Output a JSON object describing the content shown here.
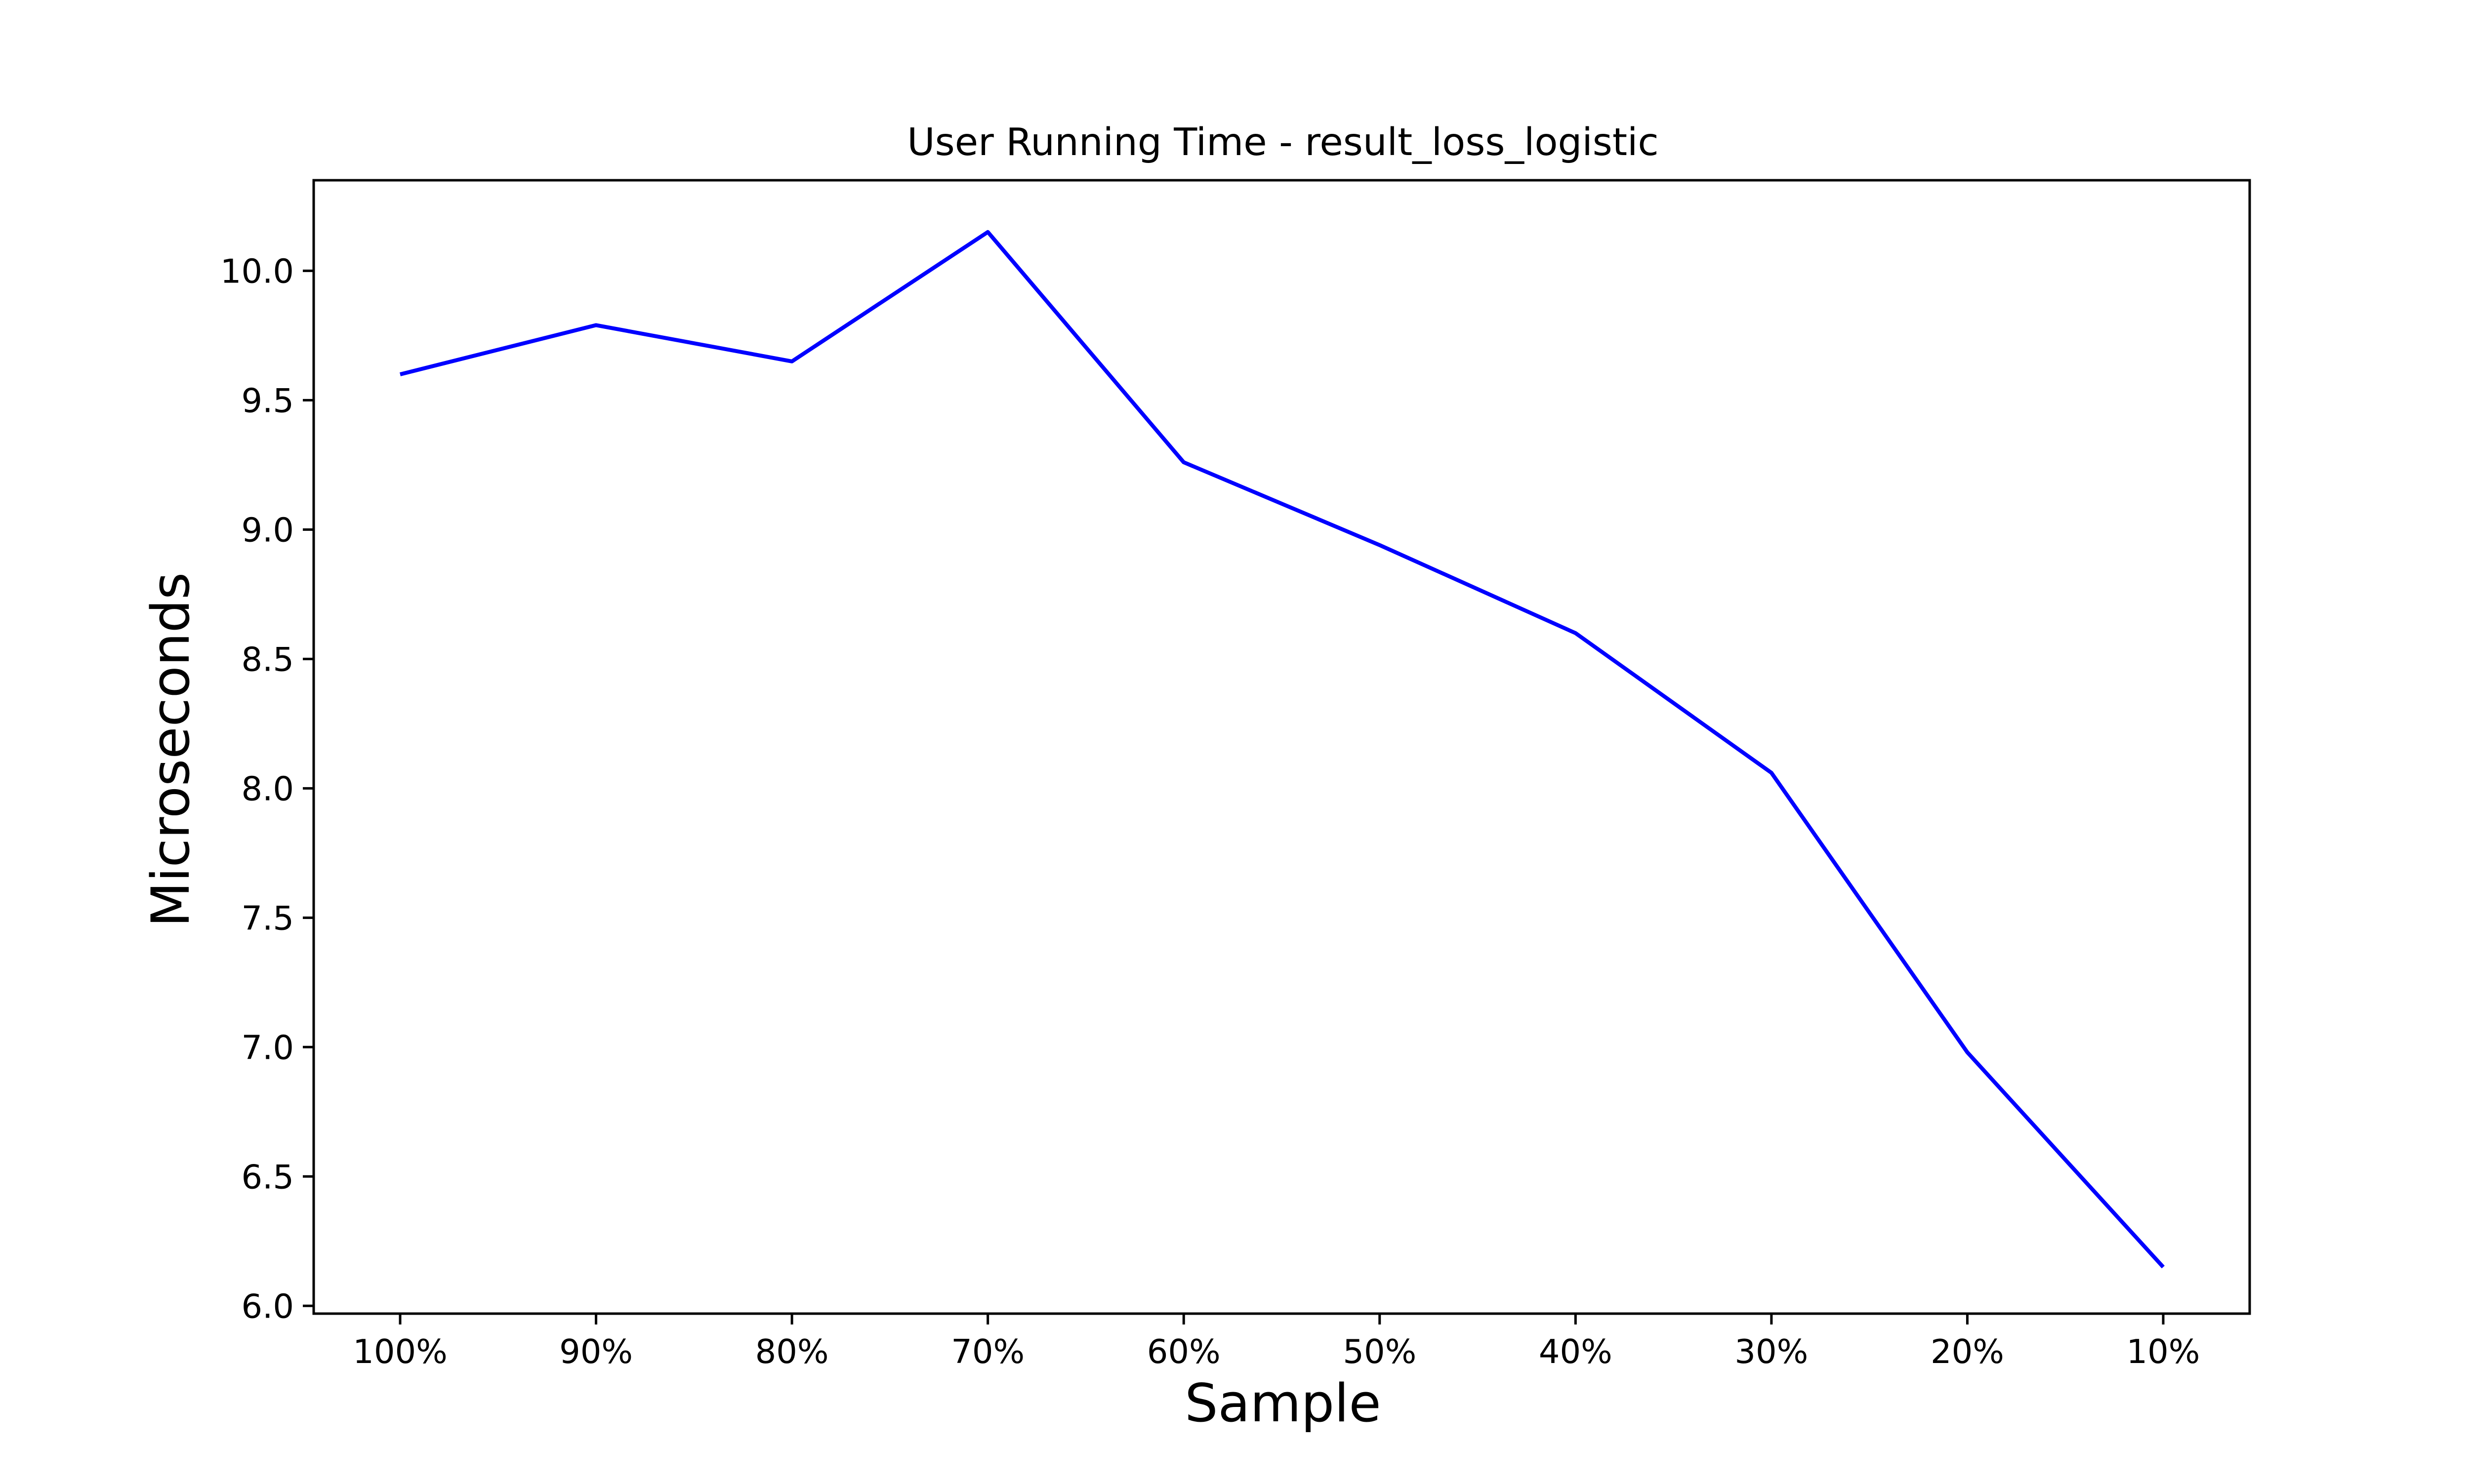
{
  "chart_data": {
    "type": "line",
    "title": "User Running Time - result_loss_logistic",
    "xlabel": "Sample",
    "ylabel": "Microseconds",
    "categories": [
      "100%",
      "90%",
      "80%",
      "70%",
      "60%",
      "50%",
      "40%",
      "30%",
      "20%",
      "10%"
    ],
    "series": [
      {
        "values": [
          9.6,
          9.79,
          9.65,
          10.15,
          9.26,
          8.94,
          8.6,
          8.06,
          6.98,
          6.15
        ],
        "color": "#0000ff"
      }
    ],
    "ylim": [
      5.97,
      10.35
    ],
    "yticks": [
      6.0,
      6.5,
      7.0,
      7.5,
      8.0,
      8.5,
      9.0,
      9.5,
      10.0
    ],
    "ytick_labels": [
      "6.0",
      "6.5",
      "7.0",
      "7.5",
      "8.0",
      "8.5",
      "9.0",
      "9.5",
      "10.0"
    ],
    "grid": false,
    "legend": "none"
  }
}
